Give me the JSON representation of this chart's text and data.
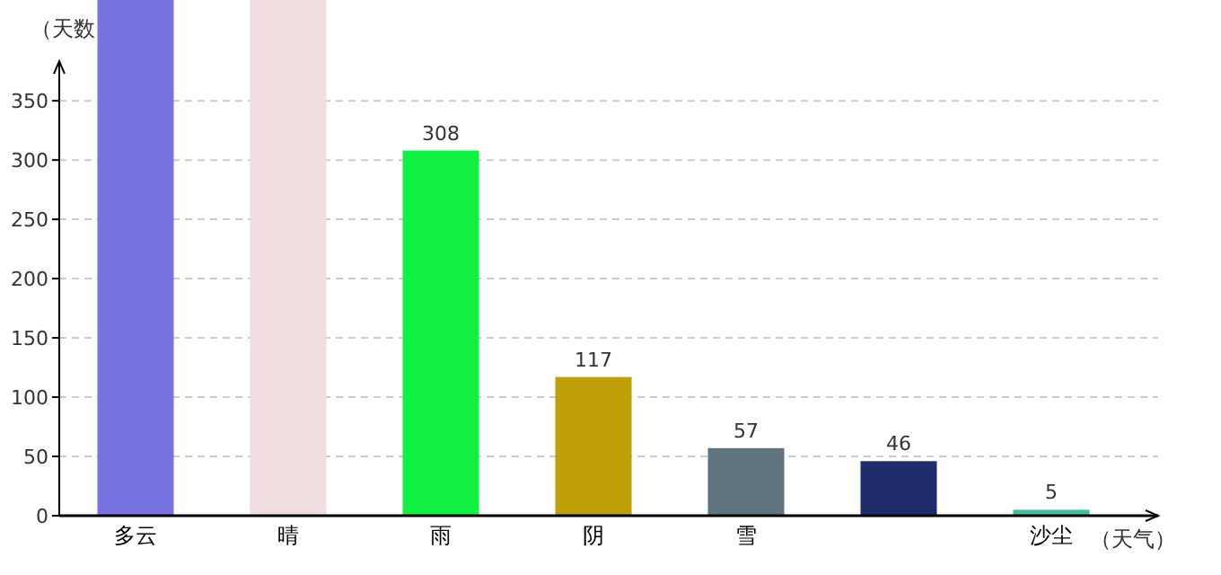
{
  "chart_data": {
    "type": "bar",
    "xlabel": "（天气）",
    "ylabel": "（天数",
    "categories": [
      "多云",
      "晴",
      "雨",
      "阴",
      "雪",
      null,
      "沙尘"
    ],
    "values": [
      435,
      435,
      308,
      117,
      57,
      46,
      5
    ],
    "colors": [
      "#7873e0",
      "#f0dde0",
      "#10f040",
      "#bf9f07",
      "#5f7480",
      "#1e2d6b",
      "#3fbfa0"
    ],
    "value_labels": [
      null,
      null,
      "308",
      "117",
      "57",
      "46",
      "5"
    ],
    "ylim": [
      0,
      435
    ],
    "yticks": [
      0,
      50,
      100,
      150,
      200,
      250,
      300,
      350
    ],
    "grid": "y"
  }
}
